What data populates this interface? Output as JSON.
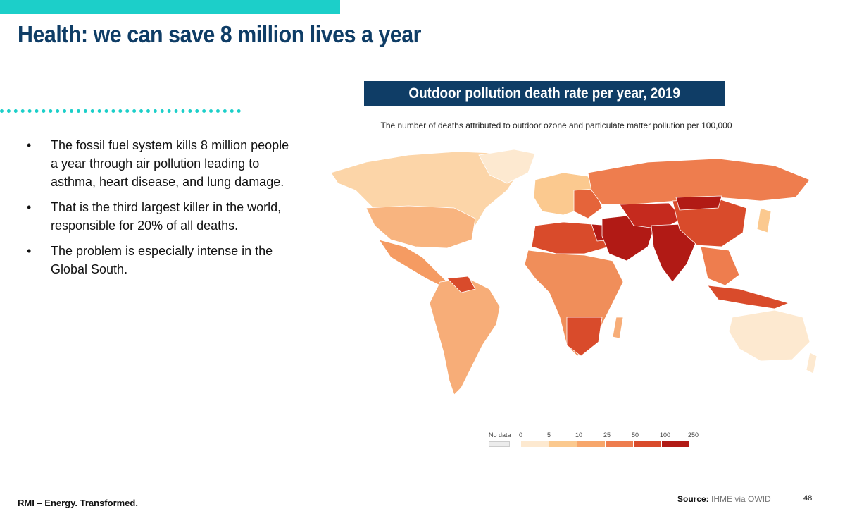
{
  "header": {
    "title": "Health: we can save 8 million lives a year"
  },
  "bullets": [
    {
      "text": "The fossil fuel system kills 8 million people a year through air pollution leading to asthma, heart disease, and lung damage."
    },
    {
      "text": "That is the third largest killer in the world, responsible for 20% of all deaths."
    },
    {
      "text": "The problem is especially intense in the Global South."
    }
  ],
  "bullet_symbol": "•",
  "map": {
    "title": "Outdoor pollution death rate per year, 2019",
    "subtitle": "The number of deaths attributed to outdoor ozone and particulate matter pollution per 100,000",
    "legend": {
      "no_data_label": "No data",
      "ticks": [
        "0",
        "5",
        "10",
        "25",
        "50",
        "100",
        "250"
      ],
      "colors": [
        "#fde9d0",
        "#fbc98f",
        "#f7a66b",
        "#ee7d4e",
        "#d94b2b",
        "#b11a15"
      ]
    }
  },
  "footer": {
    "brand": "RMI – Energy. Transformed.",
    "source_label": "Source:",
    "source_value": "IHME via OWID",
    "page_number": "48"
  }
}
